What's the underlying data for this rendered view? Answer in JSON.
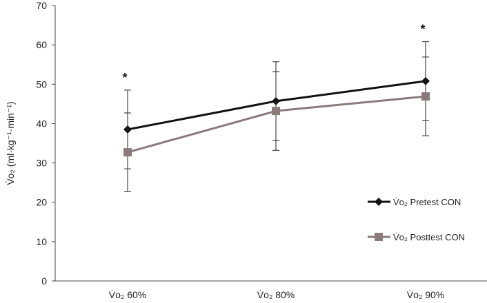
{
  "chart_data": {
    "type": "line",
    "categories": [
      "V̇o₂ 60%",
      "V̇o₂ 80%",
      "V̇o₂ 90%"
    ],
    "ylabel": "V̇o₂ (ml·kg⁻¹·min⁻¹)",
    "xlabel": "",
    "ylim": [
      0,
      70
    ],
    "yticks": [
      0,
      10,
      20,
      30,
      40,
      50,
      60,
      70
    ],
    "grid": false,
    "legend_position": "right",
    "series": [
      {
        "name": "V̇o₂ Pretest CON",
        "color": "#111111",
        "marker": "diamond",
        "values": [
          38.5,
          45.7,
          50.8
        ],
        "err_low": [
          28.5,
          35.7,
          40.8
        ],
        "err_high": [
          48.5,
          55.7,
          60.8
        ]
      },
      {
        "name": "V̇o₂ Posttest CON",
        "color": "#8a7a7a",
        "marker": "square",
        "values": [
          32.7,
          43.2,
          46.9
        ],
        "err_low": [
          22.7,
          33.2,
          36.9
        ],
        "err_high": [
          42.7,
          53.2,
          56.9
        ]
      }
    ],
    "annotations": [
      {
        "text": "*",
        "category_index": 0
      },
      {
        "text": "*",
        "category_index": 2
      }
    ]
  }
}
